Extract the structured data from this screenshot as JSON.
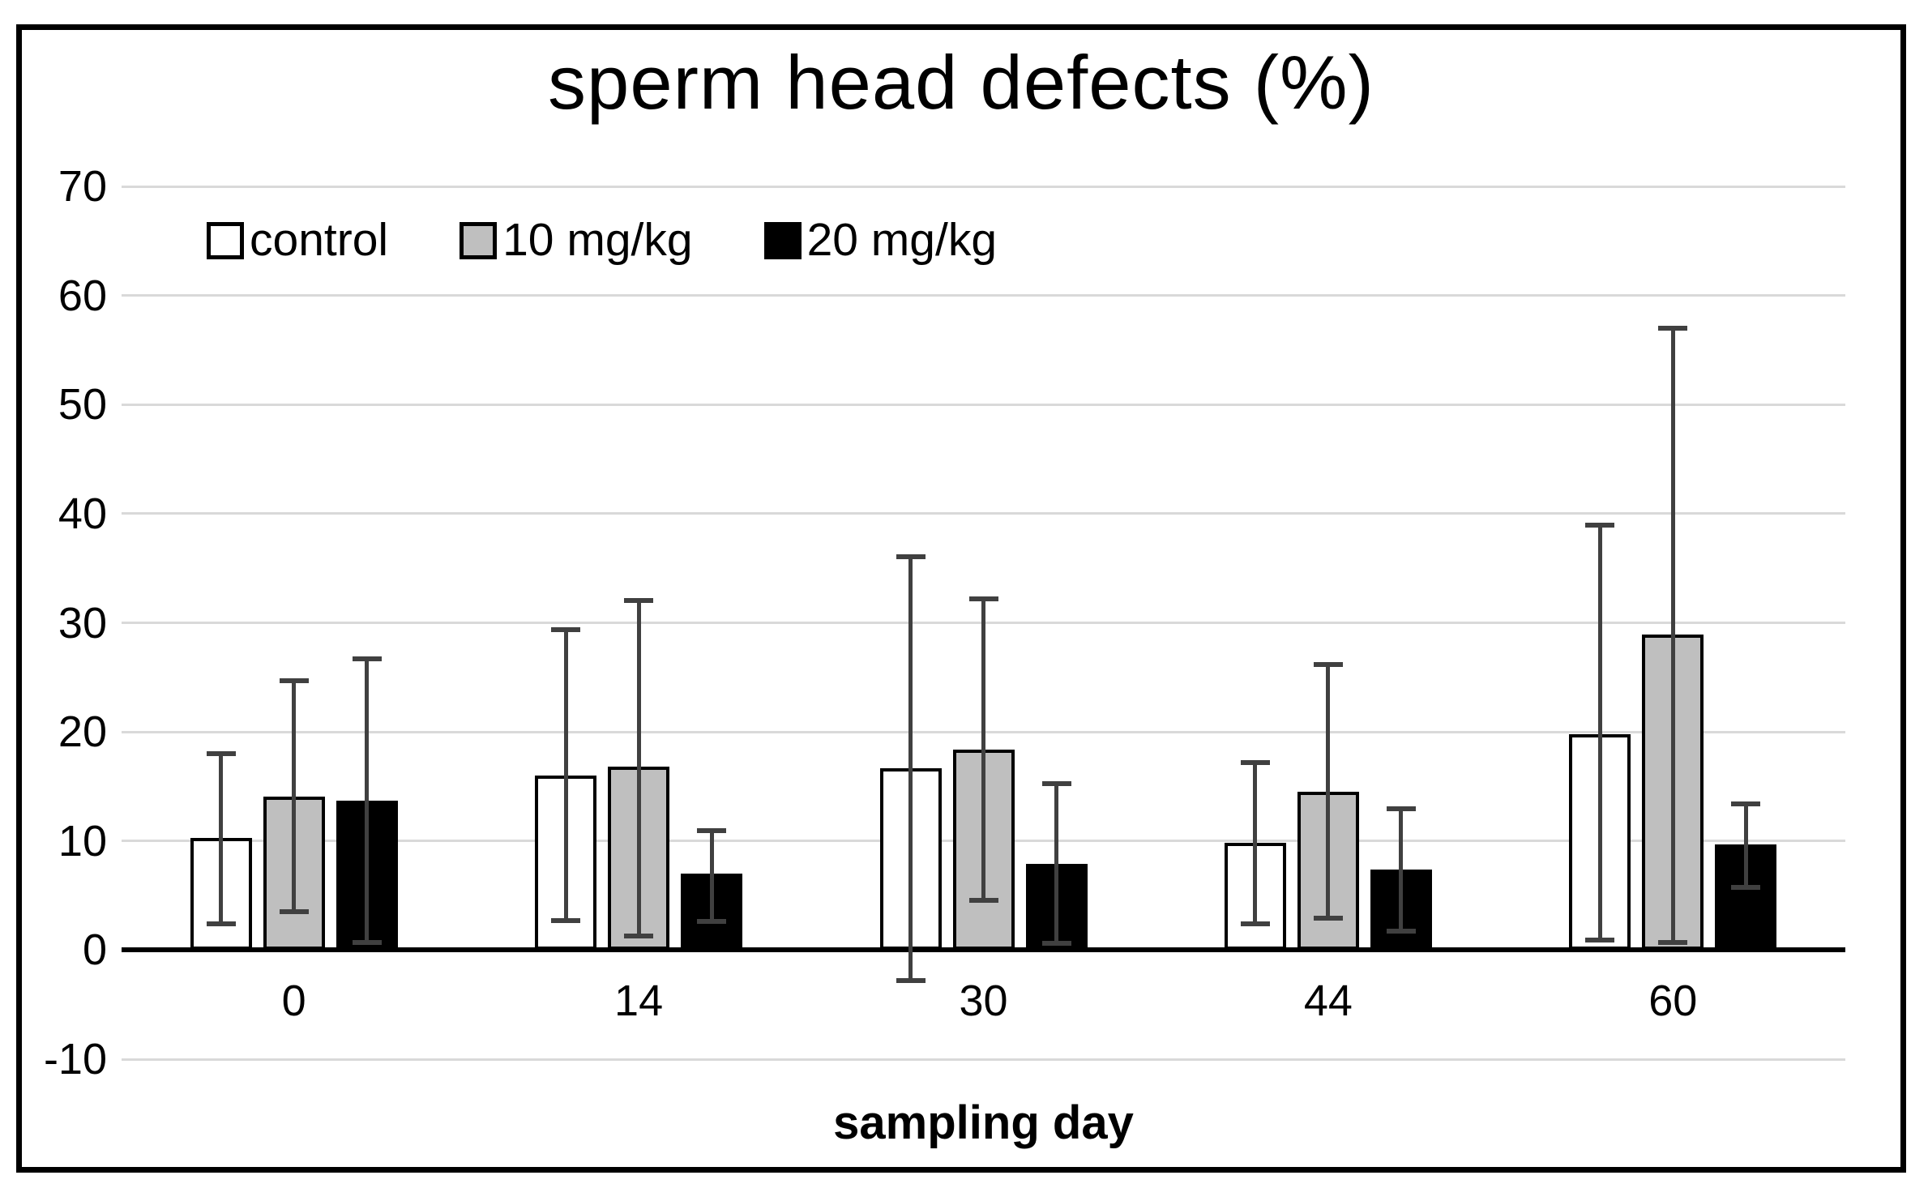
{
  "figure": {
    "title": "sperm head defects (%)",
    "border_color": "#000000"
  },
  "chart_data": {
    "type": "bar",
    "title": "sperm head defects (%)",
    "xlabel": "sampling day",
    "ylabel": "",
    "categories": [
      "0",
      "14",
      "30",
      "44",
      "60"
    ],
    "y_ticks": [
      70,
      60,
      50,
      40,
      30,
      20,
      10,
      0,
      -10
    ],
    "ylim": [
      -10,
      70
    ],
    "grid": true,
    "legend_position": "top-left-inside",
    "series": [
      {
        "name": "control",
        "fill": "#FFFFFF",
        "values": [
          10.3,
          16.0,
          16.7,
          9.8,
          19.8
        ],
        "err_low": [
          2.2,
          2.5,
          -3.0,
          2.2,
          0.7
        ],
        "err_high": [
          18.2,
          29.6,
          36.3,
          17.4,
          39.2
        ]
      },
      {
        "name": "10 mg/kg",
        "fill": "#BFBFBF",
        "values": [
          14.1,
          16.8,
          18.4,
          14.5,
          28.9
        ],
        "err_low": [
          3.3,
          1.1,
          4.3,
          2.7,
          0.5
        ],
        "err_high": [
          24.9,
          32.3,
          32.4,
          26.4,
          57.2
        ]
      },
      {
        "name": "20 mg/kg",
        "fill": "#000000",
        "values": [
          13.7,
          7.0,
          7.9,
          7.4,
          9.7
        ],
        "err_low": [
          0.5,
          2.4,
          0.4,
          1.5,
          5.5
        ],
        "err_high": [
          26.9,
          11.2,
          15.5,
          13.2,
          13.6
        ]
      }
    ],
    "colors": {
      "grid": "#D9D9D9",
      "axis": "#000000",
      "error_bar": "#404040",
      "bar_border": "#000000"
    }
  }
}
